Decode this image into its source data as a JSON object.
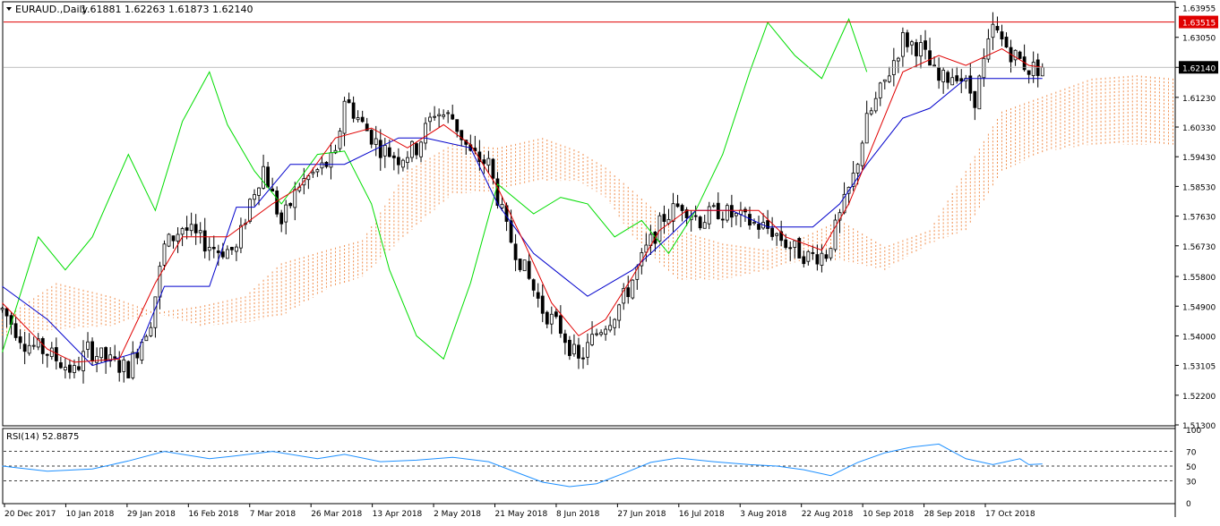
{
  "header": {
    "symbol_label": "EURAUD.,Daily",
    "ohlc_label": "1.61881 1.62263 1.61873 1.62140",
    "menu_icon": "triangle-down-icon"
  },
  "colors": {
    "background": "#ffffff",
    "axis": "#000000",
    "candle": "#000000",
    "tenkan": "#e00000",
    "kijun": "#0000cc",
    "chikou": "#00dd00",
    "kumo_bull": "#f09050",
    "kumo_bear": "#d8b0d8",
    "resistance_line": "#e00000",
    "rsi_line": "#1e90ff",
    "price_badge_red": "#e00000",
    "price_badge_black": "#000000"
  },
  "price_axis": {
    "ticks": [
      "1.63955",
      "1.63050",
      "1.62140",
      "1.61230",
      "1.60330",
      "1.59430",
      "1.58530",
      "1.57630",
      "1.56730",
      "1.55800",
      "1.54900",
      "1.54000",
      "1.53105",
      "1.52200",
      "1.51300"
    ],
    "resistance_label": "1.63515",
    "current_label": "1.62140"
  },
  "rsi": {
    "label": "RSI(14) 52.8875",
    "levels": [
      "100",
      "70",
      "50",
      "30",
      "0"
    ]
  },
  "time_axis": {
    "labels": [
      "20 Dec 2017",
      "10 Jan 2018",
      "29 Jan 2018",
      "16 Feb 2018",
      "7 Mar 2018",
      "26 Mar 2018",
      "13 Apr 2018",
      "2 May 2018",
      "21 May 2018",
      "8 Jun 2018",
      "27 Jun 2018",
      "16 Jul 2018",
      "3 Aug 2018",
      "22 Aug 2018",
      "10 Sep 2018",
      "28 Sep 2018",
      "17 Oct 2018"
    ]
  },
  "chart_data": {
    "type": "candlestick",
    "symbol": "EURAUD.",
    "timeframe": "Daily",
    "ohlc_last": {
      "open": 1.61881,
      "high": 1.62263,
      "low": 1.61873,
      "close": 1.6214
    },
    "ylim": [
      1.513,
      1.641
    ],
    "resistance_level": 1.63515,
    "last_price": 1.6214,
    "x_dates": [
      "20 Dec 2017",
      "10 Jan 2018",
      "29 Jan 2018",
      "16 Feb 2018",
      "7 Mar 2018",
      "26 Mar 2018",
      "13 Apr 2018",
      "2 May 2018",
      "21 May 2018",
      "8 Jun 2018",
      "27 Jun 2018",
      "16 Jul 2018",
      "3 Aug 2018",
      "22 Aug 2018",
      "10 Sep 2018",
      "28 Sep 2018",
      "17 Oct 2018"
    ],
    "close_path": [
      [
        0,
        1.548
      ],
      [
        5,
        1.538
      ],
      [
        10,
        1.535
      ],
      [
        16,
        1.529
      ],
      [
        19,
        1.536
      ],
      [
        24,
        1.532
      ],
      [
        28,
        1.53
      ],
      [
        33,
        1.545
      ],
      [
        36,
        1.567
      ],
      [
        40,
        1.573
      ],
      [
        44,
        1.569
      ],
      [
        48,
        1.566
      ],
      [
        52,
        1.566
      ],
      [
        55,
        1.581
      ],
      [
        58,
        1.591
      ],
      [
        62,
        1.574
      ],
      [
        66,
        1.586
      ],
      [
        70,
        1.59
      ],
      [
        74,
        1.594
      ],
      [
        76,
        1.612
      ],
      [
        80,
        1.604
      ],
      [
        84,
        1.597
      ],
      [
        88,
        1.594
      ],
      [
        92,
        1.597
      ],
      [
        96,
        1.608
      ],
      [
        100,
        1.606
      ],
      [
        104,
        1.595
      ],
      [
        108,
        1.592
      ],
      [
        112,
        1.572
      ],
      [
        116,
        1.56
      ],
      [
        120,
        1.548
      ],
      [
        124,
        1.542
      ],
      [
        128,
        1.532
      ],
      [
        132,
        1.541
      ],
      [
        136,
        1.547
      ],
      [
        139,
        1.554
      ],
      [
        143,
        1.566
      ],
      [
        147,
        1.576
      ],
      [
        151,
        1.58
      ],
      [
        155,
        1.575
      ],
      [
        159,
        1.578
      ],
      [
        163,
        1.576
      ],
      [
        167,
        1.574
      ],
      [
        171,
        1.572
      ],
      [
        175,
        1.567
      ],
      [
        179,
        1.564
      ],
      [
        183,
        1.565
      ],
      [
        186,
        1.576
      ],
      [
        189,
        1.588
      ],
      [
        192,
        1.605
      ],
      [
        196,
        1.617
      ],
      [
        200,
        1.63
      ],
      [
        204,
        1.627
      ],
      [
        208,
        1.617
      ],
      [
        212,
        1.62
      ],
      [
        216,
        1.612
      ],
      [
        220,
        1.633
      ],
      [
        224,
        1.626
      ],
      [
        228,
        1.621
      ],
      [
        231,
        1.6214
      ]
    ],
    "tenkan_path": [
      [
        0,
        1.55
      ],
      [
        10,
        1.536
      ],
      [
        16,
        1.532
      ],
      [
        26,
        1.533
      ],
      [
        34,
        1.556
      ],
      [
        40,
        1.57
      ],
      [
        50,
        1.57
      ],
      [
        60,
        1.58
      ],
      [
        66,
        1.585
      ],
      [
        74,
        1.6
      ],
      [
        82,
        1.603
      ],
      [
        90,
        1.597
      ],
      [
        98,
        1.604
      ],
      [
        104,
        1.598
      ],
      [
        110,
        1.585
      ],
      [
        116,
        1.568
      ],
      [
        122,
        1.55
      ],
      [
        128,
        1.54
      ],
      [
        134,
        1.545
      ],
      [
        140,
        1.558
      ],
      [
        146,
        1.572
      ],
      [
        152,
        1.578
      ],
      [
        160,
        1.578
      ],
      [
        168,
        1.578
      ],
      [
        174,
        1.57
      ],
      [
        182,
        1.566
      ],
      [
        188,
        1.58
      ],
      [
        194,
        1.6
      ],
      [
        200,
        1.62
      ],
      [
        208,
        1.625
      ],
      [
        214,
        1.622
      ],
      [
        222,
        1.627
      ],
      [
        228,
        1.622
      ],
      [
        231,
        1.6214
      ]
    ],
    "kijun_path": [
      [
        0,
        1.555
      ],
      [
        10,
        1.545
      ],
      [
        20,
        1.531
      ],
      [
        30,
        1.535
      ],
      [
        36,
        1.555
      ],
      [
        46,
        1.555
      ],
      [
        52,
        1.579
      ],
      [
        56,
        1.579
      ],
      [
        64,
        1.592
      ],
      [
        76,
        1.592
      ],
      [
        88,
        1.6
      ],
      [
        94,
        1.6
      ],
      [
        104,
        1.597
      ],
      [
        110,
        1.58
      ],
      [
        118,
        1.565
      ],
      [
        130,
        1.552
      ],
      [
        140,
        1.56
      ],
      [
        148,
        1.57
      ],
      [
        154,
        1.578
      ],
      [
        162,
        1.578
      ],
      [
        170,
        1.573
      ],
      [
        180,
        1.573
      ],
      [
        186,
        1.58
      ],
      [
        192,
        1.592
      ],
      [
        200,
        1.606
      ],
      [
        206,
        1.609
      ],
      [
        214,
        1.618
      ],
      [
        224,
        1.618
      ],
      [
        231,
        1.618
      ]
    ],
    "chikou_path": [
      [
        0,
        1.535
      ],
      [
        8,
        1.57
      ],
      [
        14,
        1.56
      ],
      [
        20,
        1.57
      ],
      [
        28,
        1.595
      ],
      [
        34,
        1.578
      ],
      [
        40,
        1.605
      ],
      [
        46,
        1.62
      ],
      [
        50,
        1.604
      ],
      [
        56,
        1.59
      ],
      [
        62,
        1.58
      ],
      [
        70,
        1.595
      ],
      [
        76,
        1.596
      ],
      [
        82,
        1.58
      ],
      [
        86,
        1.56
      ],
      [
        92,
        1.54
      ],
      [
        98,
        1.533
      ],
      [
        104,
        1.556
      ],
      [
        110,
        1.586
      ],
      [
        118,
        1.577
      ],
      [
        124,
        1.582
      ],
      [
        130,
        1.58
      ],
      [
        136,
        1.57
      ],
      [
        142,
        1.575
      ],
      [
        148,
        1.565
      ],
      [
        154,
        1.578
      ],
      [
        160,
        1.595
      ],
      [
        166,
        1.62
      ],
      [
        170,
        1.635
      ],
      [
        176,
        1.625
      ],
      [
        182,
        1.618
      ],
      [
        188,
        1.636
      ],
      [
        192,
        1.62
      ]
    ],
    "kumo_span_a": [
      [
        0,
        1.545
      ],
      [
        12,
        1.556
      ],
      [
        24,
        1.552
      ],
      [
        34,
        1.547
      ],
      [
        44,
        1.549
      ],
      [
        54,
        1.552
      ],
      [
        62,
        1.562
      ],
      [
        72,
        1.566
      ],
      [
        80,
        1.569
      ],
      [
        90,
        1.59
      ],
      [
        100,
        1.598
      ],
      [
        110,
        1.597
      ],
      [
        120,
        1.6
      ],
      [
        128,
        1.596
      ],
      [
        134,
        1.591
      ],
      [
        140,
        1.584
      ],
      [
        150,
        1.572
      ],
      [
        160,
        1.568
      ],
      [
        170,
        1.566
      ],
      [
        178,
        1.57
      ],
      [
        186,
        1.575
      ],
      [
        196,
        1.567
      ],
      [
        206,
        1.572
      ],
      [
        214,
        1.59
      ],
      [
        222,
        1.608
      ],
      [
        232,
        1.613
      ],
      [
        242,
        1.618
      ],
      [
        252,
        1.619
      ],
      [
        260,
        1.618
      ]
    ],
    "kumo_span_b": [
      [
        0,
        1.54
      ],
      [
        12,
        1.542
      ],
      [
        24,
        1.543
      ],
      [
        34,
        1.547
      ],
      [
        44,
        1.543
      ],
      [
        54,
        1.544
      ],
      [
        62,
        1.546
      ],
      [
        72,
        1.554
      ],
      [
        80,
        1.558
      ],
      [
        90,
        1.571
      ],
      [
        100,
        1.583
      ],
      [
        110,
        1.584
      ],
      [
        120,
        1.587
      ],
      [
        128,
        1.587
      ],
      [
        134,
        1.582
      ],
      [
        140,
        1.57
      ],
      [
        150,
        1.557
      ],
      [
        160,
        1.557
      ],
      [
        170,
        1.56
      ],
      [
        178,
        1.563
      ],
      [
        186,
        1.563
      ],
      [
        196,
        1.56
      ],
      [
        206,
        1.568
      ],
      [
        214,
        1.572
      ],
      [
        222,
        1.59
      ],
      [
        232,
        1.596
      ],
      [
        242,
        1.598
      ],
      [
        252,
        1.598
      ],
      [
        260,
        1.598
      ]
    ],
    "rsi": {
      "period": 14,
      "last": 52.8875,
      "levels": [
        70,
        50,
        30
      ],
      "ylim": [
        0,
        100
      ],
      "path": [
        [
          0,
          50
        ],
        [
          10,
          43
        ],
        [
          20,
          46
        ],
        [
          28,
          57
        ],
        [
          36,
          70
        ],
        [
          46,
          60
        ],
        [
          52,
          64
        ],
        [
          60,
          70
        ],
        [
          70,
          60
        ],
        [
          76,
          66
        ],
        [
          84,
          56
        ],
        [
          92,
          58
        ],
        [
          100,
          62
        ],
        [
          108,
          56
        ],
        [
          114,
          42
        ],
        [
          120,
          28
        ],
        [
          126,
          22
        ],
        [
          132,
          26
        ],
        [
          138,
          40
        ],
        [
          144,
          55
        ],
        [
          150,
          61
        ],
        [
          158,
          56
        ],
        [
          166,
          52
        ],
        [
          172,
          50
        ],
        [
          178,
          45
        ],
        [
          184,
          37
        ],
        [
          190,
          55
        ],
        [
          196,
          68
        ],
        [
          202,
          76
        ],
        [
          208,
          80
        ],
        [
          214,
          60
        ],
        [
          220,
          52
        ],
        [
          226,
          60
        ],
        [
          228,
          52
        ],
        [
          231,
          52.9
        ]
      ]
    }
  }
}
